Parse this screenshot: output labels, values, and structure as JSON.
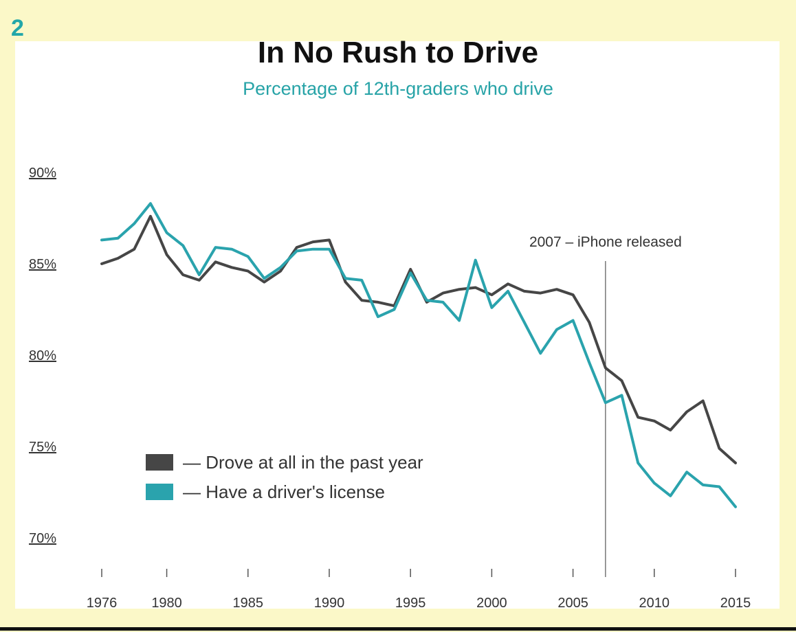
{
  "badge": "2",
  "chart_data": {
    "type": "line",
    "title": "In No Rush to Drive",
    "subtitle": "Percentage of 12th-graders who drive",
    "xlabel": "",
    "ylabel": "",
    "ylim": [
      70,
      90
    ],
    "xlim": [
      1976,
      2015
    ],
    "y_ticks": [
      "90%",
      "85%",
      "80%",
      "75%",
      "70%"
    ],
    "y_tick_values": [
      90,
      85,
      80,
      75,
      70
    ],
    "x_ticks": [
      "1976",
      "1980",
      "1985",
      "1990",
      "1995",
      "2000",
      "2005",
      "2010",
      "2015"
    ],
    "x_tick_values": [
      1976,
      1980,
      1985,
      1990,
      1995,
      2000,
      2005,
      2010,
      2015
    ],
    "grid": false,
    "legend_position": "bottom-left",
    "annotation": {
      "x": 2007,
      "text": "2007 – iPhone released"
    },
    "x": [
      1976,
      1977,
      1978,
      1979,
      1980,
      1981,
      1982,
      1983,
      1984,
      1985,
      1986,
      1987,
      1988,
      1989,
      1990,
      1991,
      1992,
      1993,
      1994,
      1995,
      1996,
      1997,
      1998,
      1999,
      2000,
      2001,
      2002,
      2003,
      2004,
      2005,
      2006,
      2007,
      2008,
      2009,
      2010,
      2011,
      2012,
      2013,
      2014,
      2015
    ],
    "series": [
      {
        "name": "— Drove at all in the past year",
        "color": "#464646",
        "values": [
          85.0,
          85.3,
          85.8,
          87.6,
          85.5,
          84.4,
          84.1,
          85.1,
          84.8,
          84.6,
          84.0,
          84.6,
          85.9,
          86.2,
          86.3,
          84.0,
          83.0,
          82.9,
          82.7,
          84.7,
          82.9,
          83.4,
          83.6,
          83.7,
          83.3,
          83.9,
          83.5,
          83.4,
          83.6,
          83.3,
          81.8,
          79.3,
          78.6,
          76.6,
          76.4,
          75.9,
          76.9,
          77.5,
          74.9,
          74.1
        ]
      },
      {
        "name": "— Have a driver's license",
        "color": "#2aa3ad",
        "values": [
          86.3,
          86.4,
          87.2,
          88.3,
          86.7,
          86.0,
          84.4,
          85.9,
          85.8,
          85.4,
          84.2,
          84.8,
          85.7,
          85.8,
          85.8,
          84.2,
          84.1,
          82.1,
          82.5,
          84.5,
          83.0,
          82.9,
          81.9,
          85.2,
          82.6,
          83.5,
          81.8,
          80.1,
          81.4,
          81.9,
          79.6,
          77.4,
          77.8,
          74.1,
          73.0,
          72.3,
          73.6,
          72.9,
          72.8,
          71.7
        ]
      }
    ]
  }
}
